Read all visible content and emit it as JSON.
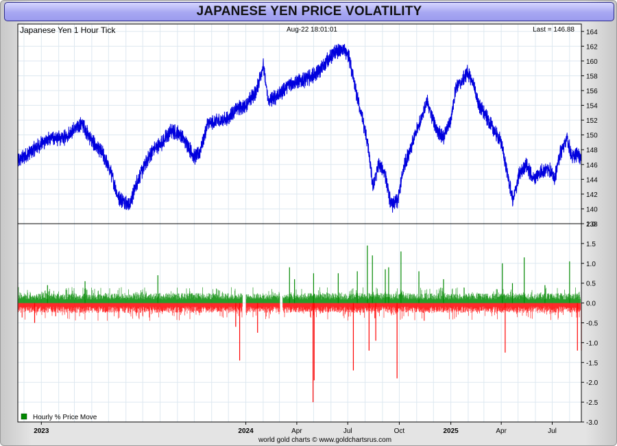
{
  "page_title": "JAPANESE YEN PRICE VOLATILITY",
  "footer_credit": "world gold charts © www.goldchartsrus.com",
  "colors": {
    "price_line": "#0000dd",
    "positive_move": "#008800",
    "negative_move": "#ff0000",
    "title_bg": "#a7a7f2",
    "grid": "#dde8f0"
  },
  "chart_data": [
    {
      "type": "line",
      "title": "Japanese Yen 1 Hour Tick",
      "date_stamp": "Aug-22  18:01:01",
      "last_label": "Last = 146.88",
      "x_range": [
        "2022-11-20",
        "2025-08-22"
      ],
      "x_tick_labels": [
        {
          "date": "2023-01-01",
          "label": "2023",
          "bold": true
        },
        {
          "date": "2024-01-01",
          "label": "2024",
          "bold": true
        },
        {
          "date": "2024-04-01",
          "label": "Apr",
          "bold": false
        },
        {
          "date": "2024-07-01",
          "label": "Jul",
          "bold": false
        },
        {
          "date": "2024-10-01",
          "label": "Oct",
          "bold": false
        },
        {
          "date": "2025-01-01",
          "label": "2025",
          "bold": true
        },
        {
          "date": "2025-04-01",
          "label": "Apr",
          "bold": false
        },
        {
          "date": "2025-07-01",
          "label": "Jul",
          "bold": false
        }
      ],
      "ylim": [
        138,
        165
      ],
      "y_ticks": [
        138,
        140,
        142,
        144,
        146,
        148,
        150,
        152,
        154,
        156,
        158,
        160,
        162,
        164
      ],
      "series": [
        {
          "name": "Japanese Yen 1 Hour Tick",
          "points": [
            [
              "2022-11-20",
              146.5
            ],
            [
              "2022-12-10",
              147.5
            ],
            [
              "2022-12-31",
              148.8
            ],
            [
              "2023-01-20",
              149.6
            ],
            [
              "2023-02-10",
              149.5
            ],
            [
              "2023-03-01",
              150.8
            ],
            [
              "2023-03-15",
              151.5
            ],
            [
              "2023-04-01",
              149.2
            ],
            [
              "2023-04-20",
              147.5
            ],
            [
              "2023-05-05",
              145.0
            ],
            [
              "2023-05-18",
              141.5
            ],
            [
              "2023-05-30",
              141.0
            ],
            [
              "2023-06-08",
              140.5
            ],
            [
              "2023-06-20",
              143.5
            ],
            [
              "2023-07-05",
              146.0
            ],
            [
              "2023-07-20",
              148.0
            ],
            [
              "2023-08-05",
              149.0
            ],
            [
              "2023-08-20",
              150.5
            ],
            [
              "2023-09-05",
              150.2
            ],
            [
              "2023-09-20",
              148.5
            ],
            [
              "2023-10-01",
              147.0
            ],
            [
              "2023-10-10",
              147.5
            ],
            [
              "2023-10-25",
              151.5
            ],
            [
              "2023-11-10",
              151.8
            ],
            [
              "2023-12-01",
              152.3
            ],
            [
              "2023-12-15",
              153.5
            ],
            [
              "2024-01-01",
              154.0
            ],
            [
              "2024-01-20",
              156.0
            ],
            [
              "2024-02-01",
              159.5
            ],
            [
              "2024-02-10",
              154.5
            ],
            [
              "2024-03-01",
              155.5
            ],
            [
              "2024-03-20",
              157.0
            ],
            [
              "2024-04-10",
              157.3
            ],
            [
              "2024-04-25",
              157.8
            ],
            [
              "2024-05-10",
              158.5
            ],
            [
              "2024-05-25",
              160.0
            ],
            [
              "2024-06-10",
              161.3
            ],
            [
              "2024-06-25",
              161.5
            ],
            [
              "2024-07-03",
              160.5
            ],
            [
              "2024-07-15",
              156.0
            ],
            [
              "2024-07-25",
              153.0
            ],
            [
              "2024-08-05",
              149.0
            ],
            [
              "2024-08-15",
              143.0
            ],
            [
              "2024-08-25",
              146.0
            ],
            [
              "2024-09-05",
              145.0
            ],
            [
              "2024-09-16",
              140.5
            ],
            [
              "2024-09-28",
              141.0
            ],
            [
              "2024-10-10",
              146.0
            ],
            [
              "2024-10-25",
              149.0
            ],
            [
              "2024-11-08",
              152.0
            ],
            [
              "2024-11-20",
              154.5
            ],
            [
              "2024-12-05",
              151.0
            ],
            [
              "2024-12-18",
              149.5
            ],
            [
              "2025-01-01",
              152.0
            ],
            [
              "2025-01-10",
              156.5
            ],
            [
              "2025-01-20",
              157.0
            ],
            [
              "2025-01-30",
              158.5
            ],
            [
              "2025-02-10",
              157.0
            ],
            [
              "2025-02-20",
              154.0
            ],
            [
              "2025-03-05",
              152.5
            ],
            [
              "2025-03-20",
              150.5
            ],
            [
              "2025-04-01",
              149.0
            ],
            [
              "2025-04-10",
              145.5
            ],
            [
              "2025-04-22",
              141.0
            ],
            [
              "2025-05-02",
              144.5
            ],
            [
              "2025-05-15",
              146.0
            ],
            [
              "2025-05-28",
              144.0
            ],
            [
              "2025-06-10",
              145.0
            ],
            [
              "2025-06-25",
              145.5
            ],
            [
              "2025-07-05",
              144.0
            ],
            [
              "2025-07-15",
              147.5
            ],
            [
              "2025-07-28",
              149.5
            ],
            [
              "2025-08-05",
              147.0
            ],
            [
              "2025-08-15",
              147.5
            ],
            [
              "2025-08-22",
              146.88
            ]
          ]
        }
      ]
    },
    {
      "type": "bar",
      "title": "Hourly % Price Move",
      "legend_label": "Hourly % Price Move",
      "ylim": [
        -3.0,
        2.0
      ],
      "y_ticks": [
        2.0,
        1.5,
        1.0,
        0.5,
        0.0,
        -0.5,
        -1.0,
        -1.5,
        -2.0,
        -2.5,
        -3.0
      ],
      "typical_range": [
        -0.25,
        0.25
      ],
      "gaps": [
        [
          "2023-12-26",
          "2024-01-01"
        ],
        [
          "2024-03-02",
          "2024-03-07"
        ]
      ],
      "notable_spikes": [
        {
          "date": "2022-12-20",
          "value": -0.5
        },
        {
          "date": "2023-01-12",
          "value": 0.45
        },
        {
          "date": "2023-03-20",
          "value": 0.55
        },
        {
          "date": "2023-07-28",
          "value": 0.7
        },
        {
          "date": "2023-12-14",
          "value": -0.6
        },
        {
          "date": "2023-12-21",
          "value": -1.45
        },
        {
          "date": "2024-01-22",
          "value": -0.75
        },
        {
          "date": "2024-03-19",
          "value": 0.9
        },
        {
          "date": "2024-03-28",
          "value": 0.6
        },
        {
          "date": "2024-04-30",
          "value": -2.5
        },
        {
          "date": "2024-05-01",
          "value": 0.75
        },
        {
          "date": "2024-05-02",
          "value": -1.95
        },
        {
          "date": "2024-06-14",
          "value": 0.75
        },
        {
          "date": "2024-07-11",
          "value": -1.7
        },
        {
          "date": "2024-07-18",
          "value": 0.8
        },
        {
          "date": "2024-08-05",
          "value": 1.45
        },
        {
          "date": "2024-08-08",
          "value": -1.2
        },
        {
          "date": "2024-08-14",
          "value": 1.2
        },
        {
          "date": "2024-08-20",
          "value": -0.95
        },
        {
          "date": "2024-09-06",
          "value": 0.85
        },
        {
          "date": "2024-09-12",
          "value": 0.9
        },
        {
          "date": "2024-09-27",
          "value": -1.9
        },
        {
          "date": "2024-10-04",
          "value": 1.3
        },
        {
          "date": "2024-11-05",
          "value": 0.8
        },
        {
          "date": "2024-12-19",
          "value": 0.6
        },
        {
          "date": "2025-04-03",
          "value": 1.0
        },
        {
          "date": "2025-04-08",
          "value": -1.25
        },
        {
          "date": "2025-04-21",
          "value": 0.5
        },
        {
          "date": "2025-05-12",
          "value": 1.15
        },
        {
          "date": "2025-06-18",
          "value": 0.45
        },
        {
          "date": "2025-08-01",
          "value": 1.05
        },
        {
          "date": "2025-08-15",
          "value": -1.2
        },
        {
          "date": "2025-08-22",
          "value": -1.2
        }
      ]
    }
  ]
}
